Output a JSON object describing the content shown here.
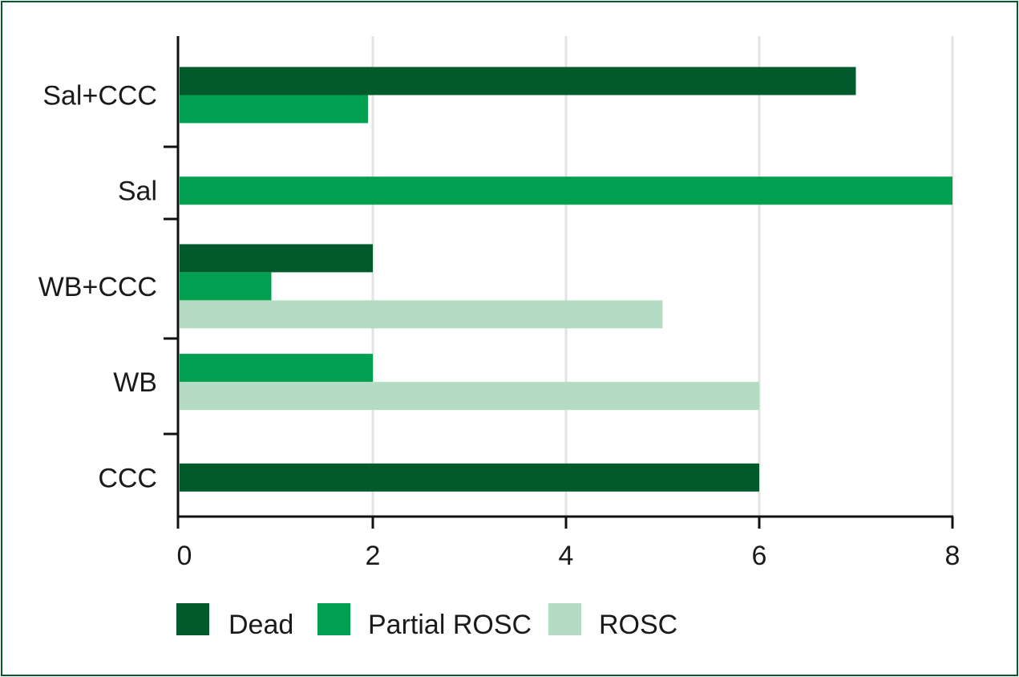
{
  "chart_data": {
    "type": "bar",
    "orientation": "horizontal",
    "categories": [
      "CCC",
      "WB",
      "WB+CCC",
      "Sal",
      "Sal+CCC"
    ],
    "series": [
      {
        "name": "Dead",
        "color": "#005a2b",
        "values": [
          6,
          0,
          2,
          0,
          7
        ]
      },
      {
        "name": "Partial ROSC",
        "color": "#00a050",
        "values": [
          0,
          2,
          0.95,
          8,
          1.95
        ]
      },
      {
        "name": "ROSC",
        "color": "#b4dcc2",
        "values": [
          0,
          6,
          5,
          0,
          0
        ]
      }
    ],
    "x_ticks": [
      "0",
      "2",
      "4",
      "6",
      "8"
    ],
    "xlim": [
      0,
      8
    ],
    "grid": "vertical",
    "legend_position": "bottom",
    "title": "",
    "xlabel": "",
    "ylabel": ""
  }
}
